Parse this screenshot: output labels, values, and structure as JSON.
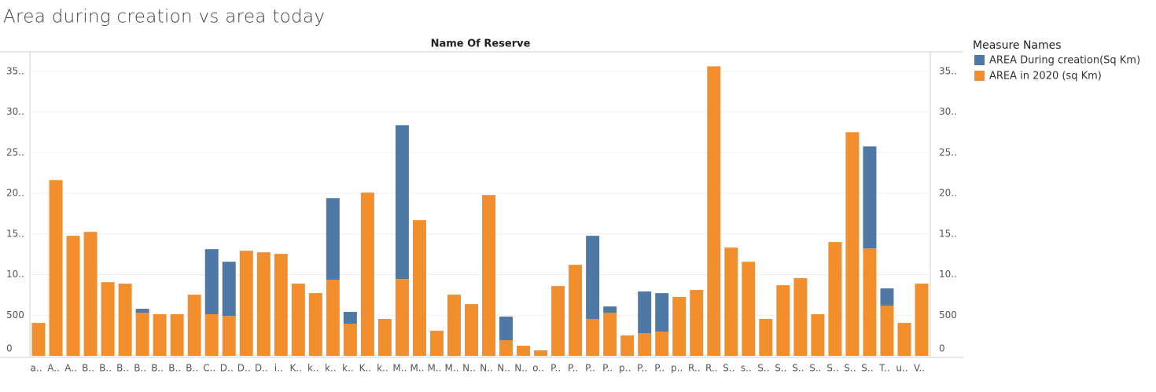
{
  "chart_data": {
    "type": "stacked-bar",
    "title": "Area during creation vs area today",
    "x_header": "Name Of Reserve",
    "legend_title": "Measure Names",
    "categories": [
      "a..",
      "A..",
      "A..",
      "B..",
      "B..",
      "B..",
      "B..",
      "B..",
      "B..",
      "B..",
      "C..",
      "D..",
      "D..",
      "D..",
      "i..",
      "K..",
      "k..",
      "k..",
      "k..",
      "K..",
      "k..",
      "M..",
      "M..",
      "M..",
      "M..",
      "N..",
      "N..",
      "N..",
      "N..",
      "o..",
      "P..",
      "P..",
      "P..",
      "P..",
      "p..",
      "P..",
      "P..",
      "p..",
      "R..",
      "R..",
      "S..",
      "s..",
      "S..",
      "S..",
      "S..",
      "S..",
      "S..",
      "S..",
      "S..",
      "T..",
      "u..",
      "V.."
    ],
    "series": [
      {
        "name": "AREA During creation(Sq Km)",
        "color": "#4e79a7",
        "values": [
          null,
          null,
          null,
          null,
          null,
          null,
          48,
          null,
          null,
          null,
          801,
          666,
          null,
          null,
          null,
          null,
          null,
          1004,
          145,
          null,
          null,
          1892,
          null,
          null,
          null,
          null,
          null,
          290,
          null,
          null,
          null,
          null,
          1023,
          77,
          null,
          512,
          473,
          null,
          null,
          null,
          null,
          null,
          null,
          null,
          null,
          null,
          null,
          null,
          1255,
          212,
          null,
          null
        ]
      },
      {
        "name": "AREA in 2020 (sq Km)",
        "color": "#f28e2b",
        "values": [
          405,
          2162,
          1477,
          1525,
          907,
          888,
          531,
          512,
          512,
          753,
          512,
          492,
          1293,
          1274,
          1255,
          888,
          772,
          936,
          396,
          2008,
          454,
          946,
          1670,
          309,
          753,
          637,
          1979,
          193,
          125,
          68,
          859,
          1120,
          454,
          531,
          251,
          280,
          299,
          724,
          811,
          3562,
          1332,
          1158,
          454,
          869,
          956,
          512,
          1400,
          2751,
          1322,
          618,
          405,
          888
        ]
      }
    ],
    "ylim": [
      0,
      3740
    ],
    "yticks": [
      0,
      500,
      {
        "value": 1000,
        "label": "10.."
      },
      {
        "value": 1500,
        "label": "15.."
      },
      {
        "value": 2000,
        "label": "20.."
      },
      {
        "value": 2500,
        "label": "25.."
      },
      {
        "value": 3000,
        "label": "30.."
      },
      {
        "value": 3500,
        "label": "35.."
      }
    ],
    "grid": true
  }
}
